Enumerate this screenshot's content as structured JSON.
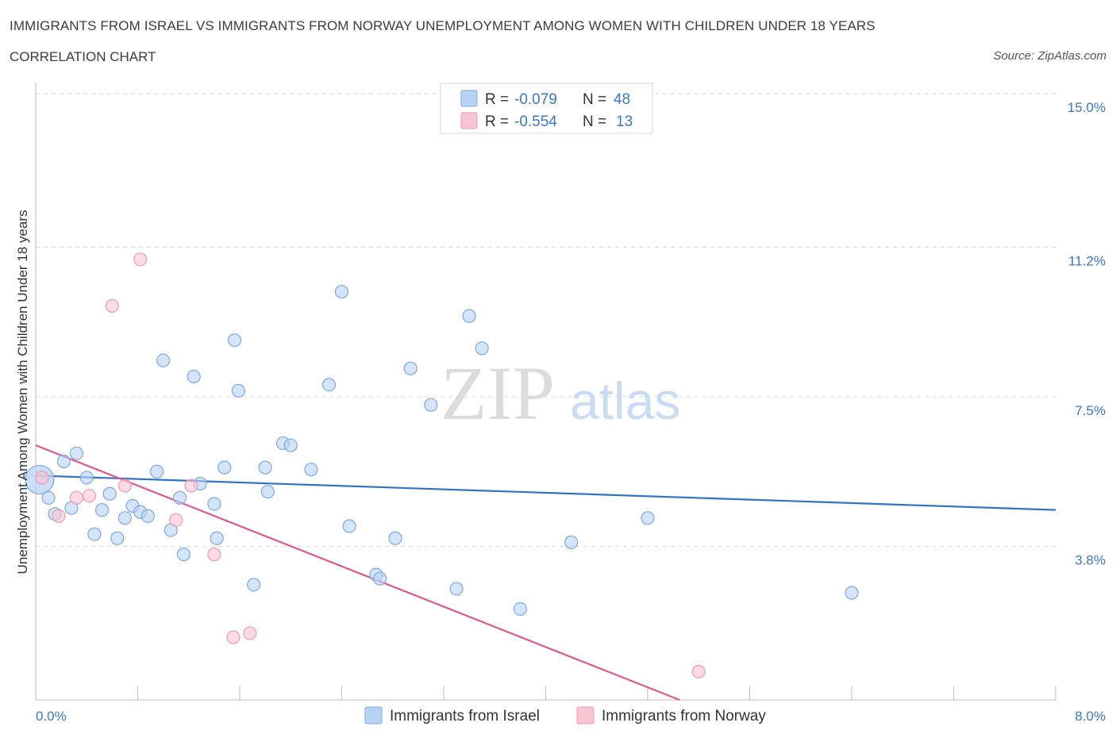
{
  "title": "IMMIGRANTS FROM ISRAEL VS IMMIGRANTS FROM NORWAY UNEMPLOYMENT AMONG WOMEN WITH CHILDREN UNDER 18 YEARS",
  "subtitle": "CORRELATION CHART",
  "source": "Source: ZipAtlas.com",
  "watermark": {
    "zip": "ZIP",
    "atlas": "atlas"
  },
  "legend": {
    "r_label": "R = ",
    "n_label": "N = ",
    "rows": [
      {
        "r": "-0.079",
        "n": "48"
      },
      {
        "r": "-0.554",
        "n": "13"
      }
    ]
  },
  "colors": {
    "israel_fill": "#b9d3f5",
    "israel_stroke": "#7fa8e0",
    "israel_line": "#2f72c8",
    "norway_fill": "#f8c5d3",
    "norway_stroke": "#ee9ab2",
    "norway_line": "#e0588a",
    "grid": "#d8d8d8",
    "tick_text": "#3a78c9"
  },
  "chart_data": {
    "type": "scatter",
    "title": "IMMIGRANTS FROM ISRAEL VS IMMIGRANTS FROM NORWAY UNEMPLOYMENT AMONG WOMEN WITH CHILDREN UNDER 18 YEARS",
    "xlabel": "",
    "ylabel": "Unemployment Among Women with Children Under 18 years",
    "xlim": [
      0,
      8.0
    ],
    "ylim": [
      0,
      15.0
    ],
    "x_tick_labels": [
      "0.0%",
      "8.0%"
    ],
    "y_ticks": [
      3.8,
      7.5,
      11.2,
      15.0
    ],
    "y_tick_labels": [
      "3.8%",
      "7.5%",
      "11.2%",
      "15.0%"
    ],
    "grid": "horizontal dashed",
    "legend_placement": "top-center",
    "series": [
      {
        "name": "Immigrants from Israel",
        "r": -0.079,
        "n": 48,
        "trend": {
          "x": [
            0.0,
            8.0
          ],
          "y": [
            5.55,
            4.7
          ]
        },
        "points": [
          {
            "x": 0.03,
            "y": 5.45,
            "big": true
          },
          {
            "x": 0.1,
            "y": 5.0
          },
          {
            "x": 0.15,
            "y": 4.6
          },
          {
            "x": 0.22,
            "y": 5.9
          },
          {
            "x": 0.28,
            "y": 4.75
          },
          {
            "x": 0.32,
            "y": 6.1
          },
          {
            "x": 0.4,
            "y": 5.5
          },
          {
            "x": 0.46,
            "y": 4.1
          },
          {
            "x": 0.52,
            "y": 4.7
          },
          {
            "x": 0.58,
            "y": 5.1
          },
          {
            "x": 0.64,
            "y": 4.0
          },
          {
            "x": 0.7,
            "y": 4.5
          },
          {
            "x": 0.76,
            "y": 4.8
          },
          {
            "x": 0.82,
            "y": 4.65
          },
          {
            "x": 0.88,
            "y": 4.55
          },
          {
            "x": 0.95,
            "y": 5.65
          },
          {
            "x": 1.0,
            "y": 8.4
          },
          {
            "x": 1.06,
            "y": 4.2
          },
          {
            "x": 1.13,
            "y": 5.0
          },
          {
            "x": 1.16,
            "y": 3.6
          },
          {
            "x": 1.24,
            "y": 8.0
          },
          {
            "x": 1.29,
            "y": 5.35
          },
          {
            "x": 1.4,
            "y": 4.85
          },
          {
            "x": 1.42,
            "y": 4.0
          },
          {
            "x": 1.48,
            "y": 5.75
          },
          {
            "x": 1.56,
            "y": 8.9
          },
          {
            "x": 1.59,
            "y": 7.65
          },
          {
            "x": 1.71,
            "y": 2.85
          },
          {
            "x": 1.8,
            "y": 5.75
          },
          {
            "x": 1.82,
            "y": 5.15
          },
          {
            "x": 1.94,
            "y": 6.35
          },
          {
            "x": 2.0,
            "y": 6.3
          },
          {
            "x": 2.16,
            "y": 5.7
          },
          {
            "x": 2.3,
            "y": 7.8
          },
          {
            "x": 2.4,
            "y": 10.1
          },
          {
            "x": 2.46,
            "y": 4.3
          },
          {
            "x": 2.67,
            "y": 3.1
          },
          {
            "x": 2.7,
            "y": 3.0
          },
          {
            "x": 2.82,
            "y": 4.0
          },
          {
            "x": 2.94,
            "y": 8.2
          },
          {
            "x": 3.1,
            "y": 7.3
          },
          {
            "x": 3.3,
            "y": 2.75
          },
          {
            "x": 3.4,
            "y": 9.5
          },
          {
            "x": 3.5,
            "y": 8.7
          },
          {
            "x": 3.8,
            "y": 2.25
          },
          {
            "x": 4.2,
            "y": 3.9
          },
          {
            "x": 4.8,
            "y": 4.5
          },
          {
            "x": 6.4,
            "y": 2.65
          }
        ]
      },
      {
        "name": "Immigrants from Norway",
        "r": -0.554,
        "n": 13,
        "trend": {
          "x": [
            0.0,
            5.05
          ],
          "y": [
            6.3,
            0.0
          ]
        },
        "points": [
          {
            "x": 0.05,
            "y": 5.5
          },
          {
            "x": 0.18,
            "y": 4.55
          },
          {
            "x": 0.32,
            "y": 5.0
          },
          {
            "x": 0.42,
            "y": 5.05
          },
          {
            "x": 0.6,
            "y": 9.75
          },
          {
            "x": 0.7,
            "y": 5.3
          },
          {
            "x": 0.82,
            "y": 10.9
          },
          {
            "x": 1.1,
            "y": 4.45
          },
          {
            "x": 1.22,
            "y": 5.3
          },
          {
            "x": 1.4,
            "y": 3.6
          },
          {
            "x": 1.55,
            "y": 1.55
          },
          {
            "x": 1.68,
            "y": 1.65
          },
          {
            "x": 5.2,
            "y": 0.7
          }
        ]
      }
    ]
  }
}
